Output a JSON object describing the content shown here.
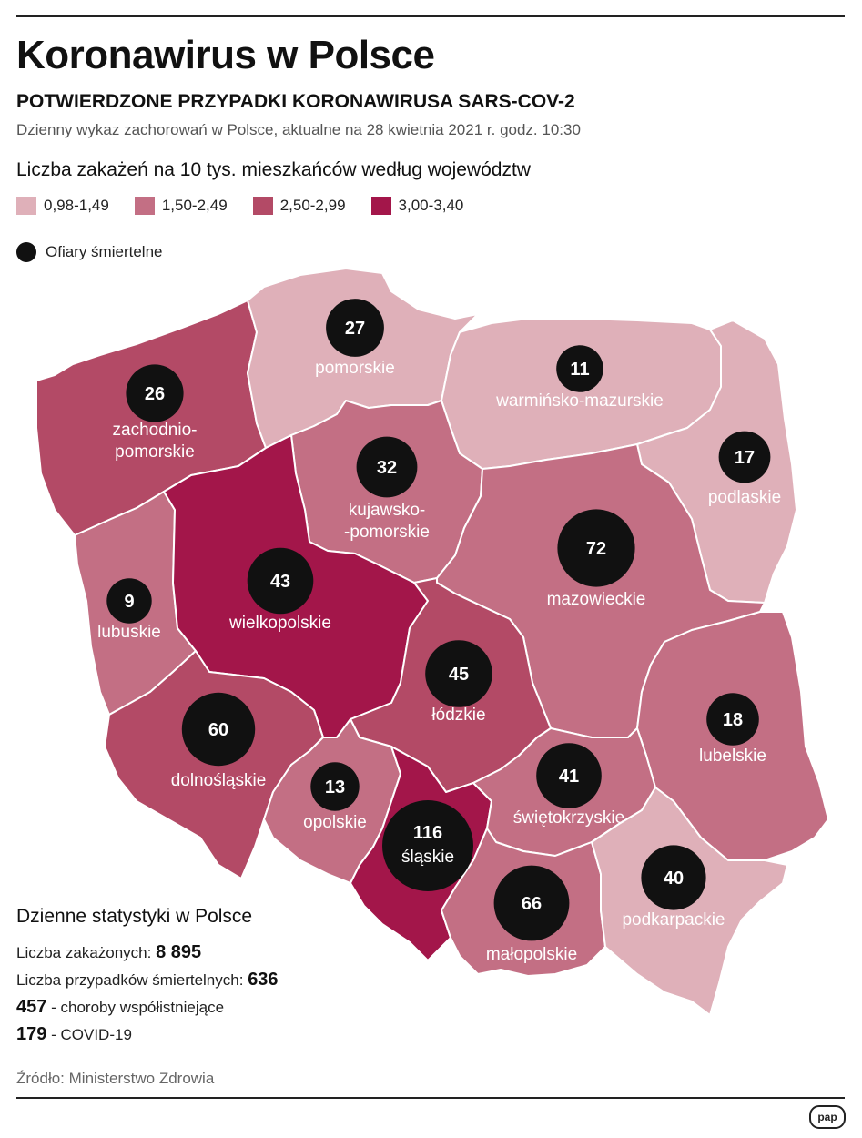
{
  "title": "Koronawirus w Polsce",
  "subtitle": "POTWIERDZONE PRZYPADKI KORONAWIRUSA SARS-COV-2",
  "description": "Dzienny wykaz zachorowań w Polsce, aktualne na 28 kwietnia 2021 r. godz. 10:30",
  "legend": {
    "title": "Liczba zakażeń na 10 tys. mieszkańców według województw",
    "items": [
      {
        "label": "0,98-1,49",
        "color": "#dfb0b9"
      },
      {
        "label": "1,50-2,49",
        "color": "#c36f84"
      },
      {
        "label": "2,50-2,99",
        "color": "#b34a66"
      },
      {
        "label": "3,00-3,40",
        "color": "#a3164a"
      }
    ],
    "deaths_label": "Ofiary śmiertelne"
  },
  "regions": [
    {
      "name": "zachodnio-pomorskie",
      "line1": "zachodnio-",
      "line2": "pomorskie",
      "deaths": 26,
      "bin": 2
    },
    {
      "name": "pomorskie",
      "line1": "pomorskie",
      "line2": "",
      "deaths": 27,
      "bin": 0
    },
    {
      "name": "warminsko-mazurskie",
      "line1": "warmińsko-mazurskie",
      "line2": "",
      "deaths": 11,
      "bin": 0
    },
    {
      "name": "podlaskie",
      "line1": "podlaskie",
      "line2": "",
      "deaths": 17,
      "bin": 0
    },
    {
      "name": "kujawsko-pomorskie",
      "line1": "kujawsko-",
      "line2": "-pomorskie",
      "deaths": 32,
      "bin": 1
    },
    {
      "name": "mazowieckie",
      "line1": "mazowieckie",
      "line2": "",
      "deaths": 72,
      "bin": 1
    },
    {
      "name": "lubuskie",
      "line1": "lubuskie",
      "line2": "",
      "deaths": 9,
      "bin": 1
    },
    {
      "name": "wielkopolskie",
      "line1": "wielkopolskie",
      "line2": "",
      "deaths": 43,
      "bin": 3
    },
    {
      "name": "lodzkie",
      "line1": "łódzkie",
      "line2": "",
      "deaths": 45,
      "bin": 2
    },
    {
      "name": "dolnoslaskie",
      "line1": "dolnośląskie",
      "line2": "",
      "deaths": 60,
      "bin": 2
    },
    {
      "name": "lubelskie",
      "line1": "lubelskie",
      "line2": "",
      "deaths": 18,
      "bin": 1
    },
    {
      "name": "opolskie",
      "line1": "opolskie",
      "line2": "",
      "deaths": 13,
      "bin": 1
    },
    {
      "name": "slaskie",
      "line1": "śląskie",
      "line2": "",
      "deaths": 116,
      "bin": 3
    },
    {
      "name": "swietokrzyskie",
      "line1": "świętokrzyskie",
      "line2": "",
      "deaths": 41,
      "bin": 1
    },
    {
      "name": "malopolskie",
      "line1": "małopolskie",
      "line2": "",
      "deaths": 66,
      "bin": 1
    },
    {
      "name": "podkarpackie",
      "line1": "podkarpackie",
      "line2": "",
      "deaths": 40,
      "bin": 0
    }
  ],
  "stats": {
    "title": "Dzienne statystyki w Polsce",
    "infections_label": "Liczba zakażonych:",
    "infections_value": "8 895",
    "deaths_label": "Liczba przypadków śmiertelnych:",
    "deaths_value": "636",
    "comorbid_value": "457",
    "comorbid_label": "- choroby współistniejące",
    "covid_value": "179",
    "covid_label": "- COVID-19"
  },
  "source": "Źródło: Ministerstwo Zdrowia",
  "logo": "pap"
}
